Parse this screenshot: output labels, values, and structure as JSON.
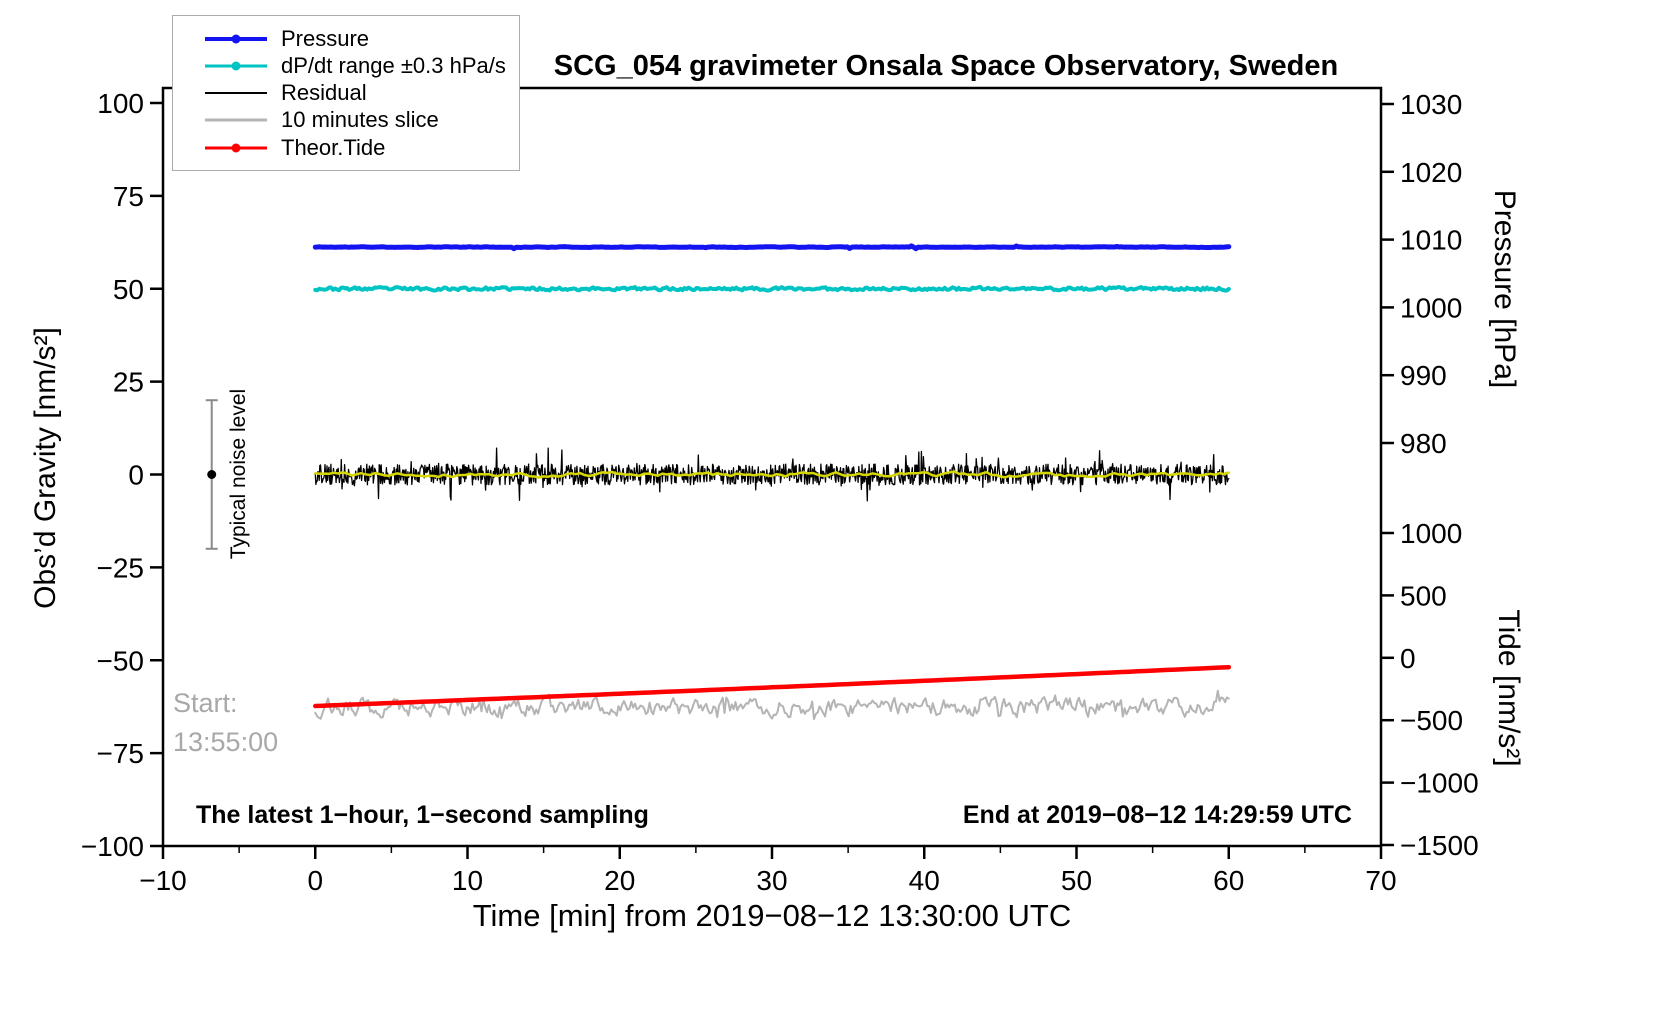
{
  "chart_data": {
    "type": "line",
    "title": "SCG_054 gravimeter Onsala Space Observatory, Sweden",
    "xlabel": "Time [min] from 2019−08−12 13:30:00 UTC",
    "x_range": [
      -10,
      70
    ],
    "x_ticks": [
      {
        "value": -10,
        "label": "−10"
      },
      {
        "value": 0,
        "label": "0"
      },
      {
        "value": 10,
        "label": "10"
      },
      {
        "value": 20,
        "label": "20"
      },
      {
        "value": 30,
        "label": "30"
      },
      {
        "value": 40,
        "label": "40"
      },
      {
        "value": 50,
        "label": "50"
      },
      {
        "value": 60,
        "label": "60"
      },
      {
        "value": 70,
        "label": "70"
      }
    ],
    "x_minor_step": 5,
    "axes": {
      "gravity": {
        "label": "Obs’d Gravity [nm/s²]",
        "range": [
          -100,
          100
        ],
        "ticks": [
          {
            "value": -100,
            "label": "−100"
          },
          {
            "value": -75,
            "label": "−75"
          },
          {
            "value": -50,
            "label": "−50"
          },
          {
            "value": -25,
            "label": "−25"
          },
          {
            "value": 0,
            "label": "0"
          },
          {
            "value": 25,
            "label": "25"
          },
          {
            "value": 50,
            "label": "50"
          },
          {
            "value": 75,
            "label": "75"
          },
          {
            "value": 100,
            "label": "100"
          }
        ]
      },
      "pressure": {
        "label": "Pressure [hPa]",
        "range": [
          980,
          1030
        ],
        "ticks": [
          {
            "value": 1030,
            "label": "1030"
          },
          {
            "value": 1020,
            "label": "1020"
          },
          {
            "value": 1010,
            "label": "1010"
          },
          {
            "value": 1000,
            "label": "1000"
          },
          {
            "value": 990,
            "label": "990"
          },
          {
            "value": 980,
            "label": "980"
          }
        ]
      },
      "tide": {
        "label": "Tide [nm/s²]",
        "range": [
          -1500,
          1000
        ],
        "ticks": [
          {
            "value": 1000,
            "label": "1000"
          },
          {
            "value": 500,
            "label": "500"
          },
          {
            "value": 0,
            "label": "0"
          },
          {
            "value": -500,
            "label": "−500"
          },
          {
            "value": -1000,
            "label": "−1000"
          },
          {
            "value": -1500,
            "label": "−1500"
          }
        ]
      }
    },
    "series": [
      {
        "id": "slice",
        "label": "10 minutes slice",
        "color": "#b4b4b4",
        "axis": "gravity",
        "x_span": [
          0,
          60
        ],
        "baseline": -62.5,
        "noise": {
          "amp": 4.2,
          "smooth": 0.55,
          "spike_p": 0.05,
          "spike_amp": 3.5,
          "n": 500,
          "seed": 53
        },
        "width": 2
      },
      {
        "id": "tide",
        "label": "Theor.Tide",
        "color": "#fe0000",
        "axis": "tide",
        "x_span": [
          0,
          60
        ],
        "trend": {
          "start": -386,
          "end": -75,
          "curve": 25,
          "n": 120
        },
        "width": 4.5
      },
      {
        "id": "residual",
        "label": "Residual",
        "color": "#000000",
        "axis": "gravity",
        "x_span": [
          0,
          60
        ],
        "baseline": 0,
        "noise": {
          "amp": 2.8,
          "spike_p": 0.06,
          "spike_amp": 5.5,
          "n": 1400,
          "seed": 37
        },
        "width": 1.3
      },
      {
        "id": "residual_smoothed",
        "label": "residual smoothed (unlabeled yellow)",
        "color": "#d6d600",
        "axis": "gravity",
        "x_span": [
          0,
          60
        ],
        "baseline": 0,
        "noise": {
          "amp": 1.2,
          "smooth": 0.6,
          "n": 200,
          "seed": 41
        },
        "width": 2.5
      },
      {
        "id": "dpdt",
        "label": "dP/dt range ±0.3 hPa/s",
        "color": "#00c3c3",
        "axis": "gravity",
        "x_span": [
          0,
          60
        ],
        "baseline": 50,
        "noise": {
          "amp": 0.55,
          "smooth": 0.3,
          "n": 460,
          "seed": 23
        },
        "width": 4
      },
      {
        "id": "pressure",
        "label": "Pressure",
        "color": "#1414f0",
        "axis": "pressure",
        "x_span": [
          0,
          60
        ],
        "baseline": 1008.9,
        "noise": {
          "amp": 0.12,
          "smooth": 0.7,
          "spike_p": 0.008,
          "spike_amp": 0.3,
          "n": 400,
          "seed": 11
        },
        "width": 5
      }
    ],
    "noise_bar": {
      "x_min": -6.8,
      "center": 0,
      "half_range": 20,
      "label": "Typical noise level"
    },
    "annotations": {
      "start_label": "Start:",
      "start_time": "13:55:00",
      "footer_left": "The latest 1−hour, 1−second sampling",
      "footer_right": "End at 2019−08−12 14:29:59 UTC"
    },
    "legend": [
      {
        "label": "Pressure",
        "color": "#1414f0",
        "marker": true,
        "lw": 4
      },
      {
        "label": "dP/dt range ±0.3 hPa/s",
        "color": "#00c3c3",
        "marker": true,
        "lw": 3
      },
      {
        "label": "Residual",
        "color": "#000000",
        "marker": false,
        "lw": 2
      },
      {
        "label": "10 minutes slice",
        "color": "#b4b4b4",
        "marker": false,
        "lw": 3
      },
      {
        "label": "Theor.Tide",
        "color": "#fe0000",
        "marker": true,
        "lw": 3
      }
    ]
  }
}
